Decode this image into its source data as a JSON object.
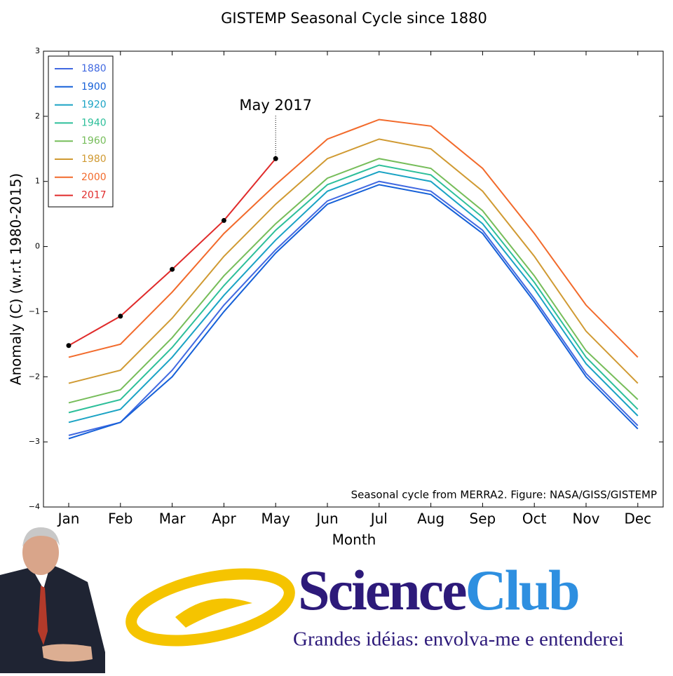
{
  "chart_data": {
    "type": "line",
    "title": "GISTEMP Seasonal Cycle since 1880",
    "x_label": "Month",
    "y_label": "Anomaly (C) (w.r.t 1980-2015)",
    "note": "Seasonal cycle from MERRA2. Figure: NASA/GISS/GISTEMP",
    "annotation": {
      "text": "May 2017",
      "series": 7,
      "index": 4
    },
    "categories": [
      "Jan",
      "Feb",
      "Mar",
      "Apr",
      "May",
      "Jun",
      "Jul",
      "Aug",
      "Sep",
      "Oct",
      "Nov",
      "Dec"
    ],
    "ylim": [
      -4,
      3
    ],
    "yticks": [
      {
        "value": -4,
        "label": "−4"
      },
      {
        "value": -3,
        "label": "−3"
      },
      {
        "value": -2,
        "label": "−2"
      },
      {
        "value": -1,
        "label": "−1"
      },
      0,
      1,
      2,
      3
    ],
    "legend": "upper left",
    "series": [
      {
        "name": "1880",
        "color": "#4169e1",
        "values": [
          -2.9,
          -2.7,
          -1.9,
          -0.9,
          -0.05,
          0.7,
          1.0,
          0.85,
          0.25,
          -0.8,
          -1.95,
          -2.75
        ]
      },
      {
        "name": "1900",
        "color": "#1560d8",
        "values": [
          -2.95,
          -2.7,
          -2.0,
          -1.0,
          -0.1,
          0.65,
          0.95,
          0.8,
          0.2,
          -0.85,
          -2.0,
          -2.8
        ]
      },
      {
        "name": "1920",
        "color": "#1aa3c4",
        "values": [
          -2.7,
          -2.5,
          -1.7,
          -0.75,
          0.1,
          0.85,
          1.15,
          1.0,
          0.35,
          -0.65,
          -1.8,
          -2.6
        ]
      },
      {
        "name": "1940",
        "color": "#2dbf9a",
        "values": [
          -2.55,
          -2.35,
          -1.55,
          -0.6,
          0.25,
          0.95,
          1.25,
          1.1,
          0.45,
          -0.55,
          -1.7,
          -2.5
        ]
      },
      {
        "name": "1960",
        "color": "#76bd5a",
        "values": [
          -2.4,
          -2.2,
          -1.4,
          -0.45,
          0.35,
          1.05,
          1.35,
          1.2,
          0.55,
          -0.45,
          -1.6,
          -2.35
        ]
      },
      {
        "name": "1980",
        "color": "#d09a32",
        "values": [
          -2.1,
          -1.9,
          -1.1,
          -0.15,
          0.65,
          1.35,
          1.65,
          1.5,
          0.85,
          -0.15,
          -1.3,
          -2.1
        ]
      },
      {
        "name": "2000",
        "color": "#f26a2b",
        "values": [
          -1.7,
          -1.5,
          -0.7,
          0.2,
          0.95,
          1.65,
          1.95,
          1.85,
          1.2,
          0.2,
          -0.9,
          -1.7
        ]
      },
      {
        "name": "2017",
        "color": "#e02b2b",
        "values": [
          -1.52,
          -1.07,
          -0.35,
          0.4,
          1.35,
          null,
          null,
          null,
          null,
          null,
          null,
          null
        ]
      }
    ]
  },
  "banner": {
    "brand_part1": "Science",
    "brand_part2": "Club",
    "tagline": "Grandes idéias: envolva-me e entenderei"
  }
}
